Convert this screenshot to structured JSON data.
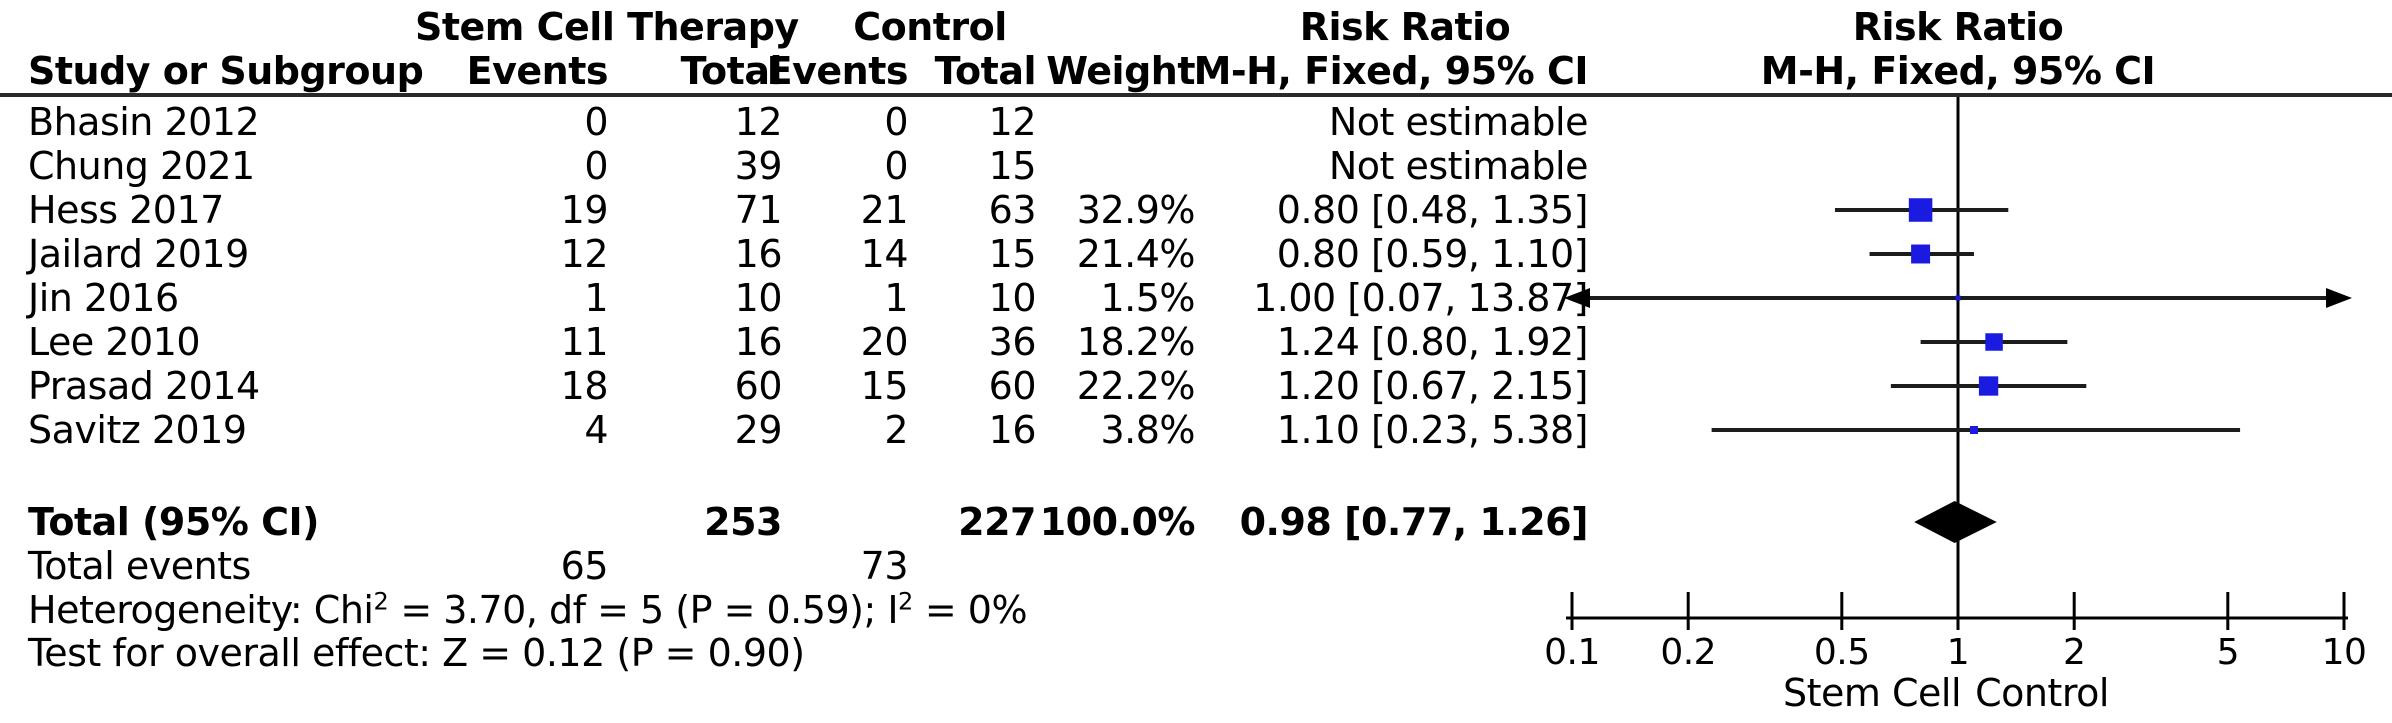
{
  "figure": {
    "group1": "Stem Cell Therapy",
    "group2": "Control",
    "rr_header": "Risk Ratio",
    "method_header": "M-H, Fixed, 95% CI",
    "col_study": "Study or Subgroup",
    "col_events": "Events",
    "col_total": "Total",
    "col_weight": "Weight"
  },
  "rows": [
    {
      "study": "Bhasin 2012",
      "e1": "0",
      "t1": "12",
      "e2": "0",
      "t2": "12",
      "weight": "",
      "rr": "Not estimable"
    },
    {
      "study": "Chung 2021",
      "e1": "0",
      "t1": "39",
      "e2": "0",
      "t2": "15",
      "weight": "",
      "rr": "Not estimable"
    },
    {
      "study": "Hess 2017",
      "e1": "19",
      "t1": "71",
      "e2": "21",
      "t2": "63",
      "weight": "32.9%",
      "rr": "0.80 [0.48, 1.35]"
    },
    {
      "study": "Jailard 2019",
      "e1": "12",
      "t1": "16",
      "e2": "14",
      "t2": "15",
      "weight": "21.4%",
      "rr": "0.80 [0.59, 1.10]"
    },
    {
      "study": "Jin 2016",
      "e1": "1",
      "t1": "10",
      "e2": "1",
      "t2": "10",
      "weight": "1.5%",
      "rr": "1.00 [0.07, 13.87]"
    },
    {
      "study": "Lee 2010",
      "e1": "11",
      "t1": "16",
      "e2": "20",
      "t2": "36",
      "weight": "18.2%",
      "rr": "1.24 [0.80, 1.92]"
    },
    {
      "study": "Prasad 2014",
      "e1": "18",
      "t1": "60",
      "e2": "15",
      "t2": "60",
      "weight": "22.2%",
      "rr": "1.20 [0.67, 2.15]"
    },
    {
      "study": "Savitz 2019",
      "e1": "4",
      "t1": "29",
      "e2": "2",
      "t2": "16",
      "weight": "3.8%",
      "rr": "1.10 [0.23, 5.38]"
    }
  ],
  "total": {
    "label": "Total (95% CI)",
    "t1": "253",
    "t2": "227",
    "weight": "100.0%",
    "rr": "0.98 [0.77, 1.26]"
  },
  "total_events": {
    "label": "Total events",
    "e1": "65",
    "e2": "73"
  },
  "heterogeneity": {
    "pre": "Heterogeneity: Chi",
    "sup1": "2",
    "mid": " = 3.70, df = 5 (P = 0.59); I",
    "sup2": "2",
    "post": " = 0%"
  },
  "overall_effect": "Test for overall effect: Z = 0.12 (P = 0.90)",
  "axis_labels": {
    "left": "Stem Cell",
    "right": "Control"
  },
  "chart_data": {
    "type": "forest",
    "title": "Risk Ratio, M-H, Fixed, 95% CI",
    "scale": "log10",
    "xlim": [
      0.1,
      10
    ],
    "ticks": [
      0.1,
      0.2,
      0.5,
      1,
      2,
      5,
      10
    ],
    "tick_labels": [
      "0.1",
      "0.2",
      "0.5",
      "1",
      "2",
      "5",
      "10"
    ],
    "marker_color": "#1a1ae0",
    "line_color": "#1c1c1c",
    "studies": [
      {
        "name": "Bhasin 2012",
        "rr": null,
        "low": null,
        "high": null,
        "weight": 0,
        "note": "Not estimable"
      },
      {
        "name": "Chung 2021",
        "rr": null,
        "low": null,
        "high": null,
        "weight": 0,
        "note": "Not estimable"
      },
      {
        "name": "Hess 2017",
        "rr": 0.8,
        "low": 0.48,
        "high": 1.35,
        "weight": 32.9
      },
      {
        "name": "Jailard 2019",
        "rr": 0.8,
        "low": 0.59,
        "high": 1.1,
        "weight": 21.4
      },
      {
        "name": "Jin 2016",
        "rr": 1.0,
        "low": 0.07,
        "high": 13.87,
        "weight": 1.5
      },
      {
        "name": "Lee 2010",
        "rr": 1.24,
        "low": 0.8,
        "high": 1.92,
        "weight": 18.2
      },
      {
        "name": "Prasad 2014",
        "rr": 1.2,
        "low": 0.67,
        "high": 2.15,
        "weight": 22.2
      },
      {
        "name": "Savitz 2019",
        "rr": 1.1,
        "low": 0.23,
        "high": 5.38,
        "weight": 3.8
      }
    ],
    "total": {
      "rr": 0.98,
      "low": 0.77,
      "high": 1.26
    }
  }
}
